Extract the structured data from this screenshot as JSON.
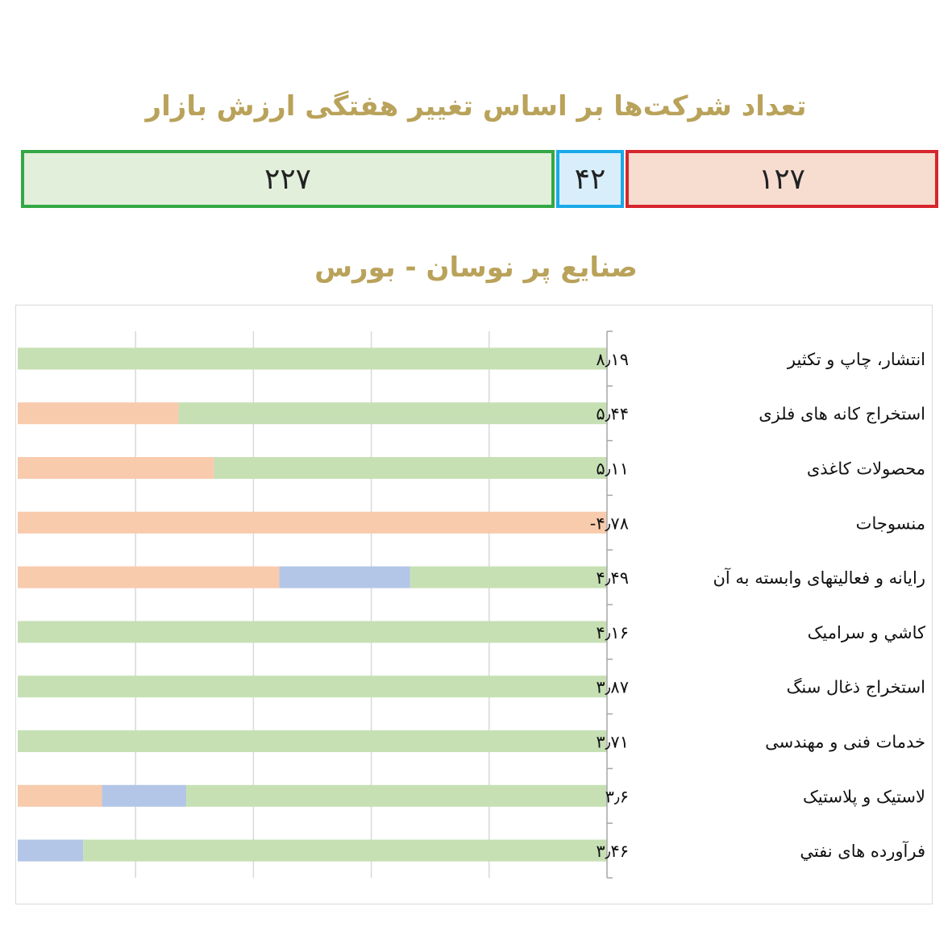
{
  "header": {
    "title": "تعداد شرکت‌ها بر اساس تغییر هفتگی ارزش بازار",
    "subtitle": "صنایع پر نوسان - بورس"
  },
  "counts": {
    "up": "۲۲۷",
    "flat": "۴۲",
    "down": "۱۲۷"
  },
  "colors": {
    "up": "#c6e0b4",
    "flat": "#b4c6e7",
    "down": "#f8cbad",
    "up_border": "#33a844",
    "flat_border": "#19a9e8",
    "down_border": "#d6262e",
    "title": "#b9a25a"
  },
  "chart_data": {
    "type": "bar",
    "orientation": "horizontal-stacked-100",
    "categories": [
      "انتشار، چاپ و تکثیر",
      "استخراج کانه های فلزی",
      "محصولات کاغذی",
      "منسوجات",
      "رایانه و فعالیتهای وابسته به آن",
      "کاشي و سرامیک",
      "استخراج ذغال سنگ",
      "خدمات فنی و مهندسی",
      "لاستیک و پلاستیک",
      "فرآورده های نفتي"
    ],
    "value_labels": [
      "۸٫۱۹",
      "۵٫۴۴",
      "۵٫۱۱",
      "۴٫۷۸-",
      "۴٫۴۹",
      "۴٫۱۶",
      "۳٫۸۷",
      "۳٫۷۱",
      "۳٫۶",
      "۳٫۴۶"
    ],
    "series": [
      {
        "color": "#f8cbad",
        "values": [
          0,
          0.273,
          0.333,
          1.0,
          0.444,
          0,
          0,
          0,
          0.143,
          0
        ]
      },
      {
        "color": "#b4c6e7",
        "values": [
          0,
          0,
          0,
          0,
          0.222,
          0,
          0,
          0,
          0.143,
          0.111
        ]
      },
      {
        "color": "#c6e0b4",
        "values": [
          1.0,
          0.727,
          0.667,
          0,
          0.334,
          1.0,
          1.0,
          1.0,
          0.714,
          0.889
        ]
      }
    ],
    "xlim": [
      0,
      1
    ],
    "grid": true,
    "legend": "none"
  }
}
